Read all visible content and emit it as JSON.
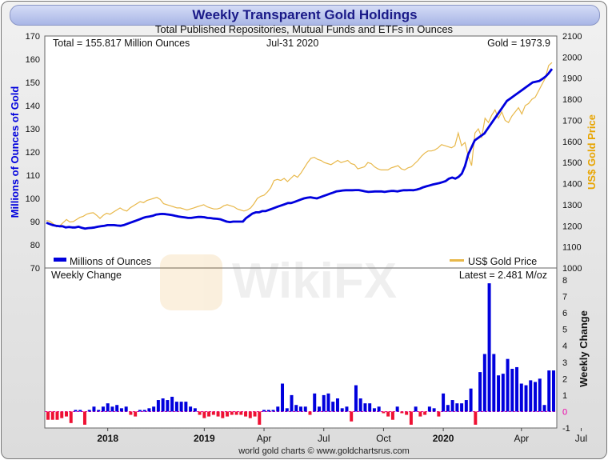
{
  "header": {
    "title": "Weekly Transparent Gold Holdings",
    "subtitle": "Total Published Repositories, Mutual Funds and ETFs in Ounces"
  },
  "footer": {
    "credit": "world gold charts © www.goldchartsrus.com"
  },
  "watermark": {
    "text": "WikiFX"
  },
  "chart_data": [
    {
      "type": "line",
      "annotations": {
        "total": "Total = 155.817 Million Ounces",
        "date": "Jul-31  2020",
        "gold": "Gold = 1973.9"
      },
      "ylabel_left": "Millions of Ounces of Gold",
      "ylabel_right": "US$ Gold Price",
      "ylim_left": [
        70,
        170
      ],
      "ylim_right": [
        1000,
        2100
      ],
      "yticks_left": [
        "70",
        "80",
        "90",
        "100",
        "110",
        "120",
        "130",
        "140",
        "150",
        "160",
        "170"
      ],
      "yticks_right": [
        "1000",
        "1100",
        "1200",
        "1300",
        "1400",
        "1500",
        "1600",
        "1700",
        "1800",
        "1900",
        "2000",
        "2100"
      ],
      "legend": {
        "placement": "bottom",
        "holdings": "Millions of Ounces",
        "price": "US$ Gold Price"
      },
      "colors": {
        "holdings": "#0000dd",
        "price": "#e8b84a",
        "left_axis": "#0000dd",
        "right_axis": "#e8a400"
      },
      "series": [
        {
          "name": "Millions of Ounces",
          "values": [
            89.5,
            89,
            88.5,
            88.2,
            88,
            88,
            87.5,
            87.7,
            87.5,
            87.5,
            87.8,
            87.3,
            87,
            87.2,
            87.3,
            87.5,
            87.8,
            88,
            88.2,
            88.5,
            88.5,
            88.5,
            88.3,
            88.2,
            88.5,
            89,
            89.5,
            90,
            90.5,
            91,
            91.6,
            92,
            92.2,
            92.5,
            93,
            93.2,
            93.3,
            93.2,
            93,
            92.8,
            92.5,
            92.2,
            92,
            91.8,
            91.6,
            91.6,
            91.8,
            92,
            92,
            91.9,
            91.6,
            91.5,
            91.3,
            91.2,
            91,
            90.5,
            90,
            89.8,
            90,
            90,
            90,
            90,
            91.5,
            92.5,
            93.5,
            94,
            94,
            94.5,
            94.5,
            95,
            95.5,
            96,
            96.5,
            97,
            97.5,
            98,
            98,
            98.5,
            99,
            99.5,
            100,
            100.3,
            100.5,
            100.2,
            100,
            100.5,
            101,
            101.5,
            102,
            102.5,
            103,
            103.2,
            103.4,
            103.5,
            103.5,
            103.5,
            103.6,
            103.6,
            103.3,
            103,
            102.8,
            102.9,
            103,
            103,
            103,
            102.8,
            103,
            103.2,
            103.2,
            103,
            103.3,
            103.5,
            103.5,
            103.6,
            103.5,
            103.8,
            104.2,
            104.8,
            105.2,
            105.6,
            106,
            106.3,
            106.6,
            107,
            107.5,
            108.5,
            109,
            108.5,
            109.3,
            110.7,
            114,
            119,
            122,
            125,
            126,
            127,
            128,
            130,
            132,
            134,
            136,
            138,
            140,
            142,
            143,
            144,
            145,
            146,
            147,
            148,
            149,
            150,
            150.3,
            150.6,
            151.5,
            152.5,
            154,
            155.817
          ]
        },
        {
          "name": "US$ Gold Price",
          "values": [
            1225,
            1222,
            1210,
            1195,
            1200,
            1215,
            1230,
            1218,
            1220,
            1230,
            1240,
            1245,
            1255,
            1260,
            1262,
            1250,
            1235,
            1250,
            1260,
            1255,
            1265,
            1275,
            1285,
            1275,
            1270,
            1285,
            1295,
            1305,
            1315,
            1310,
            1320,
            1325,
            1330,
            1335,
            1325,
            1305,
            1300,
            1295,
            1290,
            1285,
            1285,
            1280,
            1275,
            1280,
            1285,
            1290,
            1295,
            1300,
            1290,
            1285,
            1280,
            1280,
            1285,
            1295,
            1300,
            1295,
            1290,
            1280,
            1275,
            1270,
            1275,
            1285,
            1305,
            1330,
            1340,
            1345,
            1360,
            1380,
            1415,
            1420,
            1415,
            1425,
            1410,
            1425,
            1440,
            1430,
            1450,
            1475,
            1500,
            1520,
            1525,
            1515,
            1510,
            1500,
            1495,
            1490,
            1500,
            1510,
            1500,
            1505,
            1510,
            1495,
            1490,
            1470,
            1475,
            1480,
            1500,
            1495,
            1480,
            1470,
            1465,
            1465,
            1465,
            1475,
            1480,
            1485,
            1470,
            1465,
            1475,
            1480,
            1495,
            1510,
            1530,
            1545,
            1555,
            1555,
            1560,
            1570,
            1585,
            1580,
            1575,
            1570,
            1580,
            1640,
            1580,
            1595,
            1530,
            1485,
            1640,
            1660,
            1620,
            1710,
            1690,
            1725,
            1750,
            1710,
            1740,
            1700,
            1690,
            1720,
            1740,
            1760,
            1730,
            1770,
            1780,
            1800,
            1810,
            1840,
            1870,
            1900,
            1960,
            1973.9
          ]
        }
      ]
    },
    {
      "type": "bar",
      "title": "Weekly Change",
      "latest": "Latest = 2.481 M/oz",
      "ylabel": "Weekly Change",
      "ylim": [
        -1,
        8
      ],
      "yticks": [
        "-1",
        "0",
        "1",
        "2",
        "3",
        "4",
        "5",
        "6",
        "7",
        "8"
      ],
      "xticks": [
        "2018",
        "2019",
        "Apr",
        "Jul",
        "Oct",
        "2020",
        "Apr",
        "Jul"
      ],
      "colors": {
        "positive": "#0000dd",
        "negative": "#ee1133"
      },
      "values": [
        -0.5,
        -0.5,
        -0.5,
        -0.4,
        -0.3,
        -0.7,
        0.1,
        0.1,
        -0.8,
        0.1,
        0.3,
        0.1,
        0.3,
        0.5,
        0.3,
        0.4,
        0.2,
        0.3,
        -0.2,
        -0.3,
        0.1,
        0.1,
        0.2,
        0.3,
        0.7,
        0.8,
        0.7,
        0.9,
        0.6,
        0.6,
        0.6,
        0.3,
        0.2,
        -0.2,
        -0.4,
        -0.3,
        -0.2,
        -0.3,
        -0.4,
        -0.3,
        -0.2,
        -0.2,
        -0.2,
        -0.3,
        -0.4,
        -0.3,
        -0.8,
        0.1,
        0.1,
        0.1,
        0.3,
        1.7,
        0.2,
        1.0,
        0.4,
        0.3,
        0.3,
        -0.2,
        1.1,
        0.3,
        1.0,
        1.1,
        0.6,
        0.8,
        0.2,
        0.3,
        -0.6,
        1.6,
        0.8,
        0.5,
        0.5,
        0.2,
        0.3,
        -0.1,
        -0.3,
        -0.5,
        0.3,
        -0.1,
        -0.2,
        -0.8,
        0.3,
        -0.3,
        -0.2,
        0.3,
        0.2,
        -0.3,
        1.1,
        0.4,
        0.7,
        0.5,
        0.5,
        0.7,
        1.4,
        -0.8,
        2.4,
        3.5,
        7.8,
        3.5,
        2.2,
        2.3,
        3.2,
        2.6,
        2.7,
        1.7,
        1.6,
        1.9,
        1.8,
        2.0,
        0.4,
        2.5,
        2.5
      ]
    }
  ]
}
